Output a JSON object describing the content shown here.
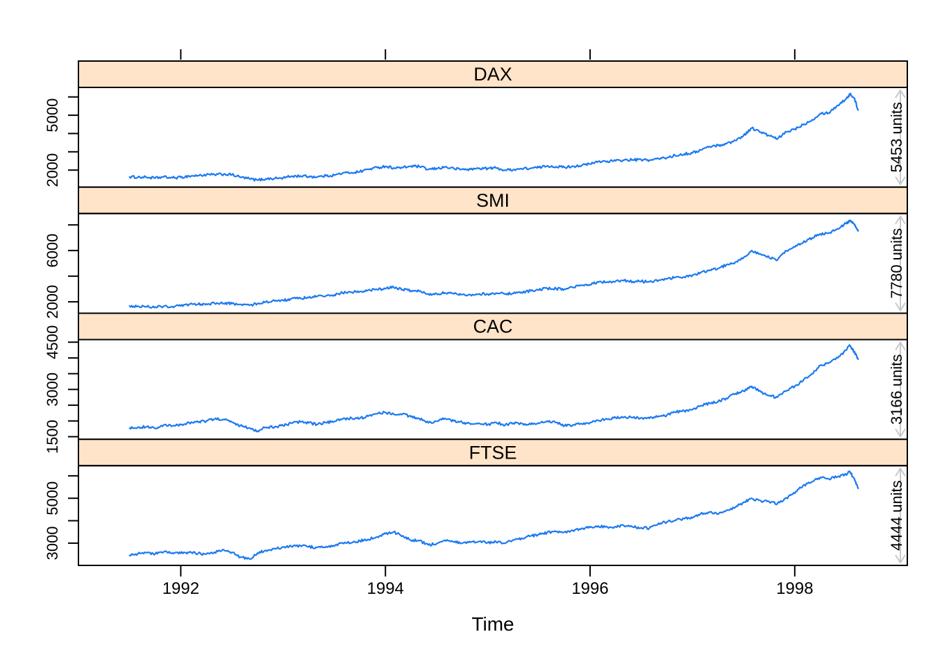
{
  "figure": {
    "background": "#ffffff"
  },
  "colors": {
    "line": "#1C79F0",
    "strip_bg": "#FFE4C9",
    "border": "#000000",
    "axis_text": "#000000",
    "arrow": "#C8C8C8",
    "panel_bg": "#FFFFFF"
  },
  "chart_data": {
    "type": "line",
    "title": "",
    "xlabel": "Time",
    "ylabel": "",
    "legend": "none",
    "grid": false,
    "xlim": [
      1991.0,
      1999.1
    ],
    "x_ticks": [
      {
        "v": 1992,
        "label": "1992"
      },
      {
        "v": 1994,
        "label": "1994"
      },
      {
        "v": 1996,
        "label": "1996"
      },
      {
        "v": 1998,
        "label": "1998"
      }
    ],
    "x": [
      1991.5,
      1991.58,
      1991.67,
      1991.75,
      1991.83,
      1991.92,
      1992.0,
      1992.08,
      1992.17,
      1992.25,
      1992.33,
      1992.42,
      1992.5,
      1992.58,
      1992.67,
      1992.75,
      1992.83,
      1992.92,
      1993.0,
      1993.08,
      1993.17,
      1993.25,
      1993.33,
      1993.42,
      1993.5,
      1993.58,
      1993.67,
      1993.75,
      1993.83,
      1993.92,
      1994.0,
      1994.08,
      1994.17,
      1994.25,
      1994.33,
      1994.42,
      1994.5,
      1994.58,
      1994.67,
      1994.75,
      1994.83,
      1994.92,
      1995.0,
      1995.08,
      1995.17,
      1995.25,
      1995.33,
      1995.42,
      1995.5,
      1995.58,
      1995.67,
      1995.75,
      1995.83,
      1995.92,
      1996.0,
      1996.08,
      1996.17,
      1996.25,
      1996.33,
      1996.42,
      1996.5,
      1996.58,
      1996.67,
      1996.75,
      1996.83,
      1996.92,
      1997.0,
      1997.08,
      1997.17,
      1997.25,
      1997.33,
      1997.42,
      1997.5,
      1997.58,
      1997.67,
      1997.75,
      1997.83,
      1997.92,
      1998.0,
      1998.08,
      1998.17,
      1998.25,
      1998.33,
      1998.42,
      1998.5,
      1998.54,
      1998.58,
      1998.62
    ],
    "panels": [
      {
        "name": "DAX",
        "right_label": "5453 units",
        "ylim": [
          1068,
          6521
        ],
        "y_ticks": [
          2000,
          3000,
          4000,
          5000,
          6000
        ],
        "y_tick_labels": [
          {
            "v": 2000,
            "label": "2000"
          },
          {
            "v": 5000,
            "label": "5000"
          }
        ],
        "values": [
          1628,
          1613,
          1606,
          1563,
          1621,
          1578,
          1600,
          1673,
          1704,
          1738,
          1748,
          1775,
          1748,
          1615,
          1527,
          1451,
          1520,
          1545,
          1571,
          1661,
          1681,
          1651,
          1629,
          1685,
          1723,
          1832,
          1861,
          1917,
          2048,
          2135,
          2209,
          2119,
          2133,
          2215,
          2197,
          2033,
          2082,
          2170,
          2080,
          2043,
          2037,
          2100,
          2090,
          2120,
          1990,
          2034,
          2070,
          2103,
          2138,
          2232,
          2187,
          2152,
          2210,
          2260,
          2330,
          2470,
          2486,
          2505,
          2542,
          2561,
          2561,
          2545,
          2622,
          2678,
          2800,
          2888,
          2933,
          3100,
          3290,
          3350,
          3438,
          3620,
          3890,
          4300,
          4070,
          3880,
          3700,
          4090,
          4250,
          4480,
          4750,
          5100,
          5130,
          5540,
          5890,
          6155,
          5950,
          5290
        ]
      },
      {
        "name": "SMI",
        "right_label": "7780 units",
        "ylim": [
          1110,
          8890
        ],
        "y_ticks": [
          2000,
          4000,
          6000,
          8000
        ],
        "y_tick_labels": [
          {
            "v": 2000,
            "label": "2000"
          },
          {
            "v": 6000,
            "label": "6000"
          }
        ],
        "values": [
          1678,
          1650,
          1620,
          1602,
          1645,
          1630,
          1680,
          1786,
          1810,
          1840,
          1880,
          1880,
          1850,
          1800,
          1730,
          1870,
          2000,
          2060,
          2110,
          2230,
          2270,
          2330,
          2430,
          2470,
          2540,
          2700,
          2750,
          2800,
          2900,
          2950,
          3025,
          3150,
          2950,
          2870,
          2820,
          2620,
          2630,
          2700,
          2620,
          2560,
          2560,
          2620,
          2600,
          2680,
          2620,
          2660,
          2750,
          2860,
          2920,
          3060,
          3020,
          2980,
          3120,
          3300,
          3340,
          3530,
          3560,
          3610,
          3650,
          3580,
          3600,
          3560,
          3680,
          3790,
          3900,
          3940,
          4050,
          4280,
          4480,
          4600,
          4880,
          5100,
          5450,
          6000,
          5700,
          5450,
          5250,
          5980,
          6270,
          6600,
          7000,
          7300,
          7350,
          7700,
          8100,
          8340,
          8100,
          7530
        ]
      },
      {
        "name": "CAC",
        "right_label": "3166 units",
        "ylim": [
          1417,
          4582
        ],
        "y_ticks": [
          1500,
          2000,
          2500,
          3000,
          3500,
          4000,
          4500
        ],
        "y_tick_labels": [
          {
            "v": 1500,
            "label": "1500"
          },
          {
            "v": 3000,
            "label": "3000"
          },
          {
            "v": 4500,
            "label": "4500"
          }
        ],
        "values": [
          1773,
          1800,
          1820,
          1760,
          1860,
          1840,
          1880,
          1950,
          1960,
          2000,
          2060,
          2050,
          1960,
          1850,
          1780,
          1680,
          1800,
          1820,
          1850,
          1930,
          1970,
          1940,
          1890,
          1950,
          1980,
          2060,
          2090,
          2080,
          2150,
          2230,
          2270,
          2220,
          2230,
          2130,
          2080,
          1940,
          1990,
          2080,
          2000,
          1950,
          1900,
          1920,
          1890,
          1950,
          1870,
          1930,
          1920,
          1890,
          1920,
          2000,
          1950,
          1850,
          1870,
          1910,
          1950,
          2020,
          2050,
          2100,
          2120,
          2110,
          2100,
          2080,
          2150,
          2180,
          2280,
          2320,
          2360,
          2480,
          2560,
          2610,
          2720,
          2870,
          2950,
          3100,
          2920,
          2800,
          2750,
          2960,
          3100,
          3270,
          3500,
          3760,
          3830,
          4000,
          4250,
          4390,
          4200,
          3960
        ]
      },
      {
        "name": "FTSE",
        "right_label": "4444 units",
        "ylim": [
          2008,
          6452
        ],
        "y_ticks": [
          3000,
          4000,
          5000,
          6000
        ],
        "y_tick_labels": [
          {
            "v": 3000,
            "label": "3000"
          },
          {
            "v": 5000,
            "label": "5000"
          }
        ],
        "values": [
          2443,
          2520,
          2580,
          2520,
          2600,
          2570,
          2550,
          2580,
          2540,
          2510,
          2600,
          2700,
          2590,
          2380,
          2300,
          2560,
          2680,
          2760,
          2820,
          2850,
          2880,
          2840,
          2810,
          2850,
          2860,
          3010,
          3020,
          3100,
          3170,
          3280,
          3420,
          3490,
          3330,
          3120,
          3110,
          2920,
          2980,
          3130,
          3050,
          3000,
          3040,
          3080,
          3030,
          3060,
          3000,
          3140,
          3220,
          3320,
          3380,
          3470,
          3510,
          3500,
          3570,
          3660,
          3700,
          3760,
          3710,
          3730,
          3780,
          3710,
          3690,
          3670,
          3890,
          3940,
          4020,
          4090,
          4120,
          4310,
          4380,
          4290,
          4450,
          4600,
          4820,
          4990,
          4880,
          4840,
          4760,
          5020,
          5220,
          5560,
          5740,
          5930,
          5870,
          5960,
          6070,
          6179,
          5880,
          5440
        ]
      }
    ]
  }
}
